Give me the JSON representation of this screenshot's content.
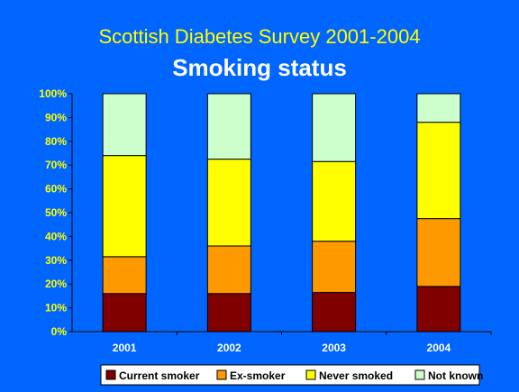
{
  "chart_data": {
    "type": "bar",
    "stacked": true,
    "normalized": true,
    "title": "Scottish Diabetes Survey 2001-2004",
    "subtitle": "Smoking status",
    "categories": [
      "2001",
      "2002",
      "2003",
      "2004"
    ],
    "yticks": [
      "0%",
      "10%",
      "20%",
      "30%",
      "40%",
      "50%",
      "60%",
      "70%",
      "80%",
      "90%",
      "100%"
    ],
    "ylim": [
      0,
      100
    ],
    "grid": false,
    "legend_position": "bottom",
    "series": [
      {
        "name": "Current smoker",
        "color": "#800000",
        "values": [
          16,
          16,
          16.5,
          19
        ]
      },
      {
        "name": "Ex-smoker",
        "color": "#ff9900",
        "values": [
          15.5,
          20,
          21.5,
          28.5
        ]
      },
      {
        "name": "Never smoked",
        "color": "#ffff00",
        "values": [
          42.5,
          36.5,
          33.5,
          40.5
        ]
      },
      {
        "name": "Not known",
        "color": "#ccffcc",
        "values": [
          26,
          27.5,
          28.5,
          12
        ]
      }
    ],
    "colors": {
      "background": "#0066ff",
      "title": "#ffff00",
      "subtitle": "#ffffff",
      "axis_labels_y": "#ffff00",
      "axis_labels_x": "#ffffff"
    }
  }
}
